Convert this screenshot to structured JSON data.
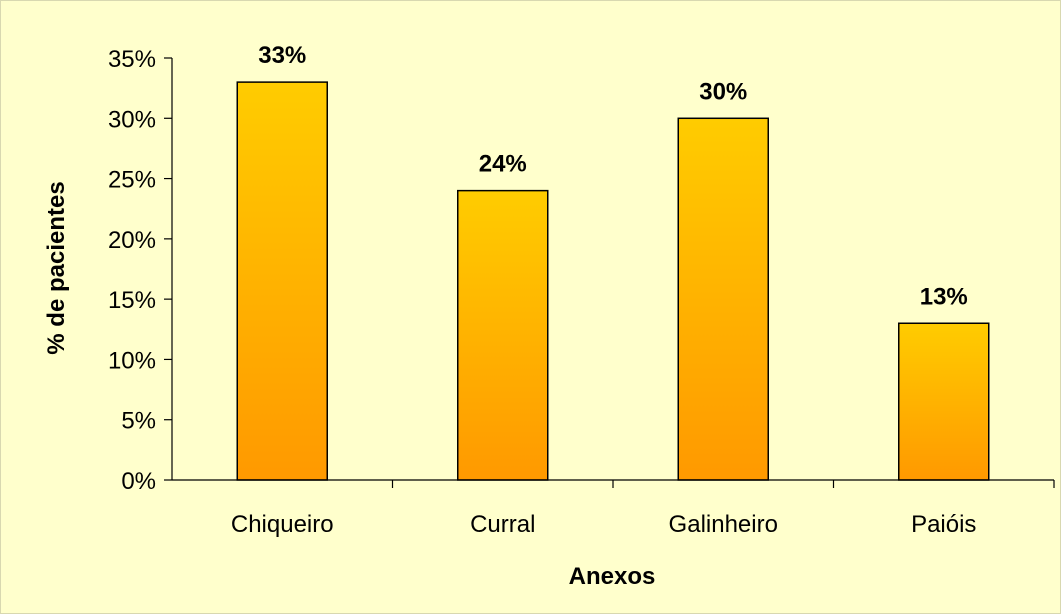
{
  "colors": {
    "background": "#ffffcc",
    "bar_top": "#ffcc00",
    "bar_bottom": "#ff9900",
    "bar_stroke": "#000000",
    "axis": "#000000"
  },
  "chart_data": {
    "type": "bar",
    "categories": [
      "Chiqueiro",
      "Curral",
      "Galinheiro",
      "Paióis"
    ],
    "values": [
      33,
      24,
      30,
      13
    ],
    "data_labels": [
      "33%",
      "24%",
      "30%",
      "13%"
    ],
    "title": "",
    "xlabel": "Anexos",
    "ylabel": "% de pacientes",
    "ylim": [
      0,
      35
    ],
    "yticks": [
      0,
      5,
      10,
      15,
      20,
      25,
      30,
      35
    ],
    "ytick_labels": [
      "0%",
      "5%",
      "10%",
      "15%",
      "20%",
      "25%",
      "30%",
      "35%"
    ],
    "grid": false,
    "legend": "none"
  }
}
